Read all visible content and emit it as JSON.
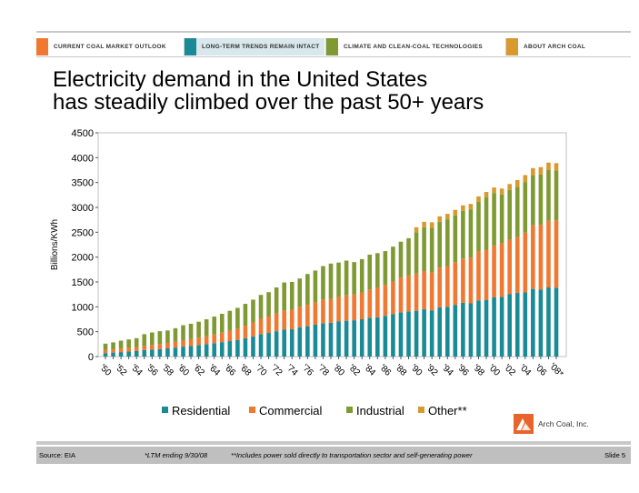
{
  "nav": {
    "tabs": [
      {
        "label": "CURRENT COAL MARKET OUTLOOK",
        "color": "#f07830",
        "active": false
      },
      {
        "label": "LONG-TERM TRENDS REMAIN INTACT",
        "color": "#1a8a96",
        "active": true
      },
      {
        "label": "CLIMATE AND CLEAN-COAL TECHNOLOGIES",
        "color": "#7f9a32",
        "active": false
      },
      {
        "label": "ABOUT ARCH COAL",
        "color": "#d89a2e",
        "active": false
      }
    ]
  },
  "title": {
    "line1": "Electricity demand in the United States",
    "line2": "has steadily climbed over the past 50+ years"
  },
  "chart_data": {
    "type": "bar",
    "stacked": true,
    "ylabel": "Billions/KWh",
    "ylim": [
      0,
      4500
    ],
    "yticks": [
      0,
      500,
      1000,
      1500,
      2000,
      2500,
      3000,
      3500,
      4000,
      4500
    ],
    "gridlines": false,
    "legend_position": "bottom",
    "categories": [
      "1950",
      "1951",
      "1952",
      "1953",
      "1954",
      "1955",
      "1956",
      "1957",
      "1958",
      "1959",
      "1960",
      "1961",
      "1962",
      "1963",
      "1964",
      "1965",
      "1966",
      "1967",
      "1968",
      "1969",
      "1970",
      "1971",
      "1972",
      "1973",
      "1974",
      "1975",
      "1976",
      "1977",
      "1978",
      "1979",
      "1980",
      "1981",
      "1982",
      "1983",
      "1984",
      "1985",
      "1986",
      "1987",
      "1988",
      "1989",
      "1990",
      "1991",
      "1992",
      "1993",
      "1994",
      "1995",
      "1996",
      "1997",
      "1998",
      "1999",
      "2000",
      "2001",
      "2002",
      "2003",
      "2004",
      "2005",
      "2006",
      "2007",
      "2008*"
    ],
    "tick_labels": [
      "'50",
      "",
      "'52",
      "",
      "'54",
      "",
      "'56",
      "",
      "'58",
      "",
      "'60",
      "",
      "'62",
      "",
      "'64",
      "",
      "'66",
      "",
      "'68",
      "",
      "'70",
      "",
      "'72",
      "",
      "'74",
      "",
      "'76",
      "",
      "'78",
      "",
      "'80",
      "",
      "'82",
      "",
      "'84",
      "",
      "'86",
      "",
      "'88",
      "",
      "'90",
      "",
      "'92",
      "",
      "'94",
      "",
      "'96",
      "",
      "'98",
      "",
      "'00",
      "",
      "'02",
      "",
      "'04",
      "",
      "'06",
      "",
      "'08*"
    ],
    "series": [
      {
        "name": "Residential",
        "color": "#1a8a96",
        "values": [
          70,
          80,
          90,
          100,
          110,
          130,
          140,
          150,
          165,
          180,
          200,
          210,
          230,
          250,
          270,
          290,
          310,
          335,
          370,
          405,
          450,
          475,
          510,
          540,
          550,
          590,
          610,
          640,
          670,
          680,
          710,
          720,
          730,
          750,
          780,
          790,
          820,
          850,
          890,
          910,
          920,
          950,
          930,
          990,
          1000,
          1040,
          1080,
          1070,
          1130,
          1140,
          1190,
          1200,
          1260,
          1280,
          1290,
          1360,
          1350,
          1390,
          1380
        ]
      },
      {
        "name": "Commercial",
        "color": "#f07830",
        "values": [
          60,
          65,
          70,
          75,
          80,
          90,
          95,
          100,
          110,
          120,
          130,
          140,
          150,
          160,
          175,
          190,
          210,
          225,
          250,
          280,
          310,
          330,
          360,
          380,
          390,
          410,
          430,
          450,
          480,
          480,
          490,
          510,
          520,
          540,
          570,
          600,
          620,
          660,
          700,
          720,
          750,
          770,
          760,
          800,
          820,
          860,
          890,
          920,
          980,
          1010,
          1050,
          1080,
          1100,
          1120,
          1200,
          1280,
          1300,
          1340,
          1360
        ]
      },
      {
        "name": "Industrial",
        "color": "#7f9a32",
        "values": [
          130,
          140,
          160,
          170,
          180,
          230,
          250,
          260,
          250,
          270,
          300,
          310,
          320,
          340,
          360,
          380,
          400,
          420,
          440,
          460,
          480,
          490,
          520,
          570,
          560,
          570,
          620,
          640,
          670,
          710,
          690,
          700,
          650,
          670,
          700,
          690,
          680,
          700,
          720,
          750,
          830,
          880,
          900,
          920,
          940,
          940,
          960,
          970,
          1000,
          1050,
          1050,
          980,
          990,
          1010,
          1020,
          1000,
          1010,
          1020,
          1000
        ]
      },
      {
        "name": "Other**",
        "color": "#d89a2e",
        "values": [
          0,
          0,
          0,
          0,
          0,
          0,
          0,
          0,
          0,
          0,
          0,
          0,
          0,
          0,
          0,
          0,
          0,
          0,
          0,
          0,
          0,
          0,
          0,
          0,
          0,
          0,
          0,
          0,
          0,
          0,
          0,
          0,
          0,
          0,
          0,
          0,
          0,
          0,
          0,
          0,
          100,
          110,
          110,
          110,
          110,
          110,
          110,
          110,
          110,
          110,
          110,
          120,
          120,
          140,
          140,
          150,
          150,
          150,
          150
        ]
      }
    ]
  },
  "logo": {
    "name": "Arch Coal, Inc."
  },
  "footer": {
    "source": "Source: EIA",
    "note1": "*LTM ending 9/30/08",
    "note2": "**Includes power sold directly to transportation sector and self-generating power",
    "slide": "Slide 5"
  }
}
